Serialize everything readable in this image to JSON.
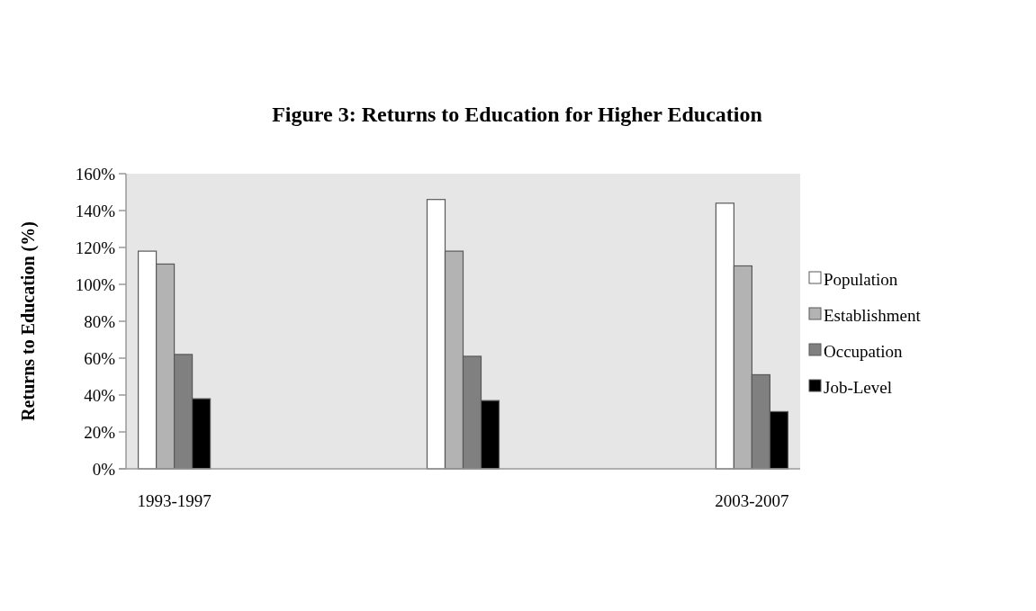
{
  "chart_data": {
    "type": "bar",
    "title": "Figure 3: Returns to Education for Higher Education",
    "ylabel": "Returns to Education (%)",
    "categories": [
      "1993-1997",
      null,
      "2003-2007"
    ],
    "series": [
      {
        "name": "Population",
        "color": "#ffffff",
        "values": [
          118,
          146,
          144
        ]
      },
      {
        "name": "Establishment",
        "color": "#b3b3b3",
        "values": [
          111,
          118,
          110
        ]
      },
      {
        "name": "Occupation",
        "color": "#808080",
        "values": [
          62,
          61,
          51
        ]
      },
      {
        "name": "Job-Level",
        "color": "#000000",
        "values": [
          38,
          37,
          31
        ]
      }
    ],
    "ylim": [
      0,
      160
    ],
    "yticks": [
      {
        "value": 0,
        "label": "0%"
      },
      {
        "value": 20,
        "label": "20%"
      },
      {
        "value": 40,
        "label": "40%"
      },
      {
        "value": 60,
        "label": "60%"
      },
      {
        "value": 80,
        "label": "80%"
      },
      {
        "value": 100,
        "label": "100%"
      },
      {
        "value": 120,
        "label": "120%"
      },
      {
        "value": 140,
        "label": "140%"
      },
      {
        "value": 160,
        "label": "160%"
      }
    ],
    "grid": false,
    "legend": "right"
  }
}
